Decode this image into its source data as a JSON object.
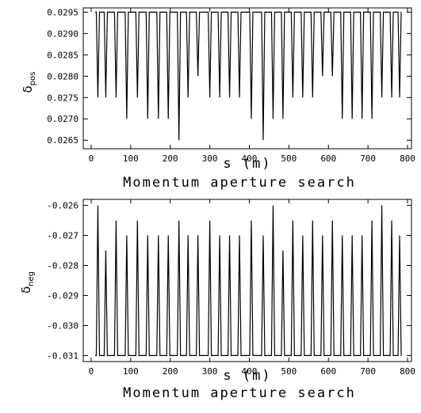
{
  "chart_data": [
    {
      "type": "line",
      "title": "",
      "xlabel": "s (m)",
      "caption": "Momentum aperture search",
      "ylabel_main": "δ",
      "ylabel_sub": "pos",
      "xlim": [
        -20,
        810
      ],
      "ylim": [
        0.0263,
        0.0296
      ],
      "xticks": [
        0,
        100,
        200,
        300,
        400,
        500,
        600,
        700,
        800
      ],
      "yticks": [
        0.0265,
        0.027,
        0.0275,
        0.028,
        0.0285,
        0.029,
        0.0295
      ],
      "ytick_labels": [
        "0.0265",
        "0.0270",
        "0.0275",
        "0.0280",
        "0.0285",
        "0.0290",
        "0.0295"
      ],
      "grid": false,
      "baseline": 0.0295,
      "x_start": 10,
      "x_end": 785,
      "series": [
        {
          "x": [
            17,
            37,
            63,
            90,
            117,
            143,
            170,
            195,
            222,
            245,
            270,
            300,
            325,
            350,
            375,
            405,
            435,
            460,
            485,
            510,
            535,
            560,
            585,
            610,
            635,
            660,
            685,
            710,
            735,
            760,
            780
          ],
          "values": [
            0.0275,
            0.0275,
            0.0275,
            0.027,
            0.0275,
            0.027,
            0.027,
            0.027,
            0.0265,
            0.0275,
            0.028,
            0.0275,
            0.0275,
            0.0275,
            0.0275,
            0.027,
            0.0265,
            0.027,
            0.027,
            0.0275,
            0.0275,
            0.0275,
            0.028,
            0.028,
            0.027,
            0.027,
            0.027,
            0.027,
            0.0275,
            0.0275,
            0.0275
          ]
        }
      ]
    },
    {
      "type": "line",
      "title": "",
      "xlabel": "s (m)",
      "caption": "Momentum aperture search",
      "ylabel_main": "δ",
      "ylabel_sub": "neg",
      "xlim": [
        -20,
        810
      ],
      "ylim": [
        -0.0312,
        -0.0258
      ],
      "xticks": [
        0,
        100,
        200,
        300,
        400,
        500,
        600,
        700,
        800
      ],
      "yticks": [
        -0.031,
        -0.03,
        -0.029,
        -0.028,
        -0.027,
        -0.026
      ],
      "ytick_labels": [
        "-0.031",
        "-0.030",
        "-0.029",
        "-0.028",
        "-0.027",
        "-0.026"
      ],
      "grid": false,
      "baseline": -0.031,
      "x_start": 10,
      "x_end": 785,
      "series": [
        {
          "x": [
            17,
            37,
            63,
            90,
            117,
            143,
            170,
            195,
            222,
            245,
            270,
            300,
            325,
            350,
            375,
            405,
            435,
            460,
            485,
            510,
            535,
            560,
            585,
            610,
            635,
            660,
            685,
            710,
            735,
            760,
            780
          ],
          "values": [
            -0.026,
            -0.0275,
            -0.0265,
            -0.027,
            -0.0265,
            -0.027,
            -0.027,
            -0.027,
            -0.0265,
            -0.027,
            -0.027,
            -0.0265,
            -0.027,
            -0.027,
            -0.027,
            -0.0265,
            -0.027,
            -0.026,
            -0.0275,
            -0.0265,
            -0.027,
            -0.0265,
            -0.027,
            -0.0265,
            -0.027,
            -0.027,
            -0.027,
            -0.0265,
            -0.026,
            -0.0265,
            -0.027
          ]
        }
      ]
    }
  ]
}
